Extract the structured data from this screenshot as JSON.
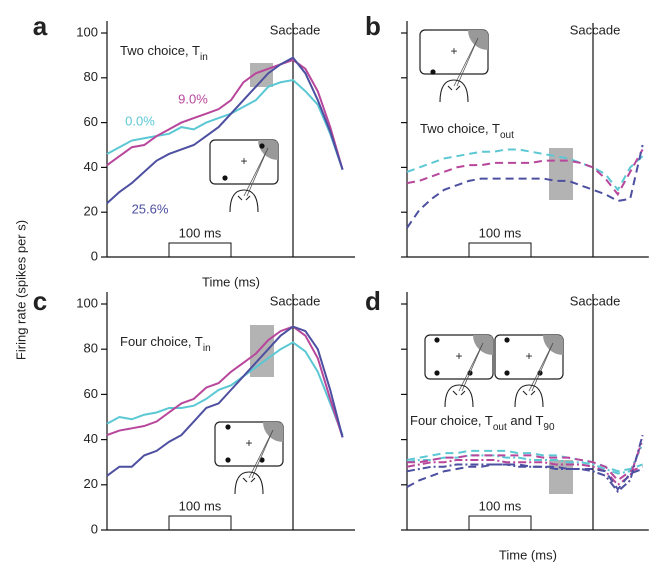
{
  "ylabel": "Firing rate (spikes per s)",
  "chart_data": [
    {
      "type": "line",
      "panel": "a",
      "title": [
        "Two choice, T",
        "in"
      ],
      "annotation": "Saccade",
      "scalebar": "100 ms",
      "xlabel": "Time (ms)",
      "x": [
        -300,
        -280,
        -260,
        -240,
        -220,
        -200,
        -180,
        -160,
        -140,
        -120,
        -100,
        -80,
        -60,
        -40,
        -20,
        0,
        20,
        40,
        60,
        80
      ],
      "xlim": [
        -300,
        100
      ],
      "ylim": [
        0,
        100
      ],
      "yticks": [
        0,
        20,
        40,
        60,
        80,
        100
      ],
      "series": [
        {
          "name": "0.0%",
          "color": "#5bc8d4",
          "values": [
            46,
            49,
            52,
            53,
            54,
            55,
            58,
            57,
            60,
            62,
            64,
            67,
            70,
            76,
            78,
            79,
            74,
            68,
            55,
            39
          ]
        },
        {
          "name": "9.0%",
          "color": "#b8479c",
          "values": [
            41,
            45,
            49,
            50,
            54,
            57,
            60,
            62,
            64,
            66,
            70,
            78,
            82,
            84,
            86,
            88,
            84,
            74,
            58,
            39
          ]
        },
        {
          "name": "25.6%",
          "color": "#4d4fa0",
          "values": [
            24,
            29,
            33,
            38,
            43,
            46,
            48,
            50,
            54,
            58,
            64,
            70,
            76,
            82,
            86,
            89,
            82,
            70,
            56,
            39
          ]
        }
      ]
    },
    {
      "type": "line",
      "panel": "b",
      "title": [
        "Two choice, T",
        "out"
      ],
      "annotation": "Saccade",
      "scalebar": "100 ms",
      "x": [
        -300,
        -280,
        -260,
        -240,
        -220,
        -200,
        -180,
        -160,
        -140,
        -120,
        -100,
        -80,
        -60,
        -40,
        -20,
        0,
        20,
        40,
        60,
        80
      ],
      "xlim": [
        -300,
        90
      ],
      "ylim": [
        0,
        100
      ],
      "dash": "8,5",
      "series": [
        {
          "color": "#5bc8d4",
          "values": [
            38,
            40,
            42,
            44,
            45,
            46,
            47,
            47,
            48,
            48,
            47,
            46,
            45,
            44,
            42,
            40,
            37,
            30,
            40,
            45
          ]
        },
        {
          "color": "#b8479c",
          "values": [
            33,
            34,
            36,
            38,
            40,
            41,
            41,
            42,
            42,
            42,
            42,
            43,
            43,
            43,
            42,
            40,
            35,
            28,
            38,
            48
          ]
        },
        {
          "color": "#4d4fa0",
          "values": [
            13,
            21,
            26,
            30,
            32,
            34,
            35,
            35,
            35,
            35,
            35,
            35,
            34,
            34,
            32,
            30,
            28,
            25,
            26,
            50
          ]
        }
      ]
    },
    {
      "type": "line",
      "panel": "c",
      "title": [
        "Four choice, T",
        "in"
      ],
      "annotation": "Saccade",
      "scalebar": "100 ms",
      "x": [
        -300,
        -280,
        -260,
        -240,
        -220,
        -200,
        -180,
        -160,
        -140,
        -120,
        -100,
        -80,
        -60,
        -40,
        -20,
        0,
        20,
        40,
        60,
        80
      ],
      "xlim": [
        -300,
        100
      ],
      "ylim": [
        0,
        100
      ],
      "yticks": [
        0,
        20,
        40,
        60,
        80,
        100
      ],
      "series": [
        {
          "color": "#5bc8d4",
          "values": [
            47,
            50,
            49,
            51,
            52,
            54,
            54,
            55,
            58,
            62,
            64,
            68,
            72,
            76,
            80,
            83,
            79,
            70,
            56,
            42
          ]
        },
        {
          "color": "#b8479c",
          "values": [
            42,
            44,
            45,
            46,
            48,
            52,
            56,
            58,
            63,
            65,
            70,
            74,
            78,
            84,
            88,
            90,
            86,
            76,
            58,
            41
          ]
        },
        {
          "color": "#4d4fa0",
          "values": [
            24,
            28,
            28,
            33,
            35,
            39,
            42,
            48,
            54,
            56,
            62,
            68,
            74,
            80,
            86,
            90,
            88,
            80,
            62,
            41
          ]
        }
      ]
    },
    {
      "type": "line",
      "panel": "d",
      "title": [
        "Four choice, T",
        "out",
        " and T",
        "90"
      ],
      "annotation": "Saccade",
      "scalebar": "100 ms",
      "xlabel": "Time (ms)",
      "x": [
        -300,
        -280,
        -260,
        -240,
        -220,
        -200,
        -180,
        -160,
        -140,
        -120,
        -100,
        -80,
        -60,
        -40,
        -20,
        0,
        20,
        40,
        60,
        80
      ],
      "xlim": [
        -300,
        90
      ],
      "ylim": [
        0,
        100
      ],
      "series": [
        {
          "color": "#5bc8d4",
          "dash": "8,5",
          "values": [
            31,
            32,
            33,
            34,
            34,
            35,
            35,
            35,
            35,
            34,
            34,
            33,
            33,
            32,
            31,
            30,
            28,
            26,
            27,
            29
          ]
        },
        {
          "color": "#5bc8d4",
          "dash": "8,3,2,3",
          "values": [
            30,
            31,
            31,
            32,
            32,
            33,
            33,
            33,
            32,
            32,
            31,
            31,
            31,
            30,
            30,
            29,
            27,
            25,
            26,
            38
          ]
        },
        {
          "color": "#b8479c",
          "dash": "8,5",
          "values": [
            30,
            30,
            31,
            32,
            32,
            33,
            33,
            33,
            33,
            33,
            33,
            32,
            32,
            32,
            31,
            30,
            28,
            22,
            26,
            28
          ]
        },
        {
          "color": "#b8479c",
          "dash": "8,3,2,3",
          "values": [
            28,
            29,
            30,
            30,
            31,
            31,
            31,
            31,
            30,
            30,
            30,
            30,
            29,
            29,
            29,
            28,
            26,
            20,
            24,
            40
          ]
        },
        {
          "color": "#4d4fa0",
          "dash": "8,5",
          "values": [
            19,
            22,
            24,
            26,
            27,
            28,
            28,
            29,
            29,
            29,
            28,
            28,
            28,
            27,
            27,
            27,
            26,
            18,
            25,
            27
          ]
        },
        {
          "color": "#4d4fa0",
          "dash": "8,3,2,3",
          "values": [
            26,
            27,
            28,
            28,
            29,
            29,
            29,
            29,
            29,
            28,
            28,
            28,
            27,
            27,
            27,
            26,
            24,
            17,
            22,
            42
          ]
        }
      ]
    }
  ]
}
